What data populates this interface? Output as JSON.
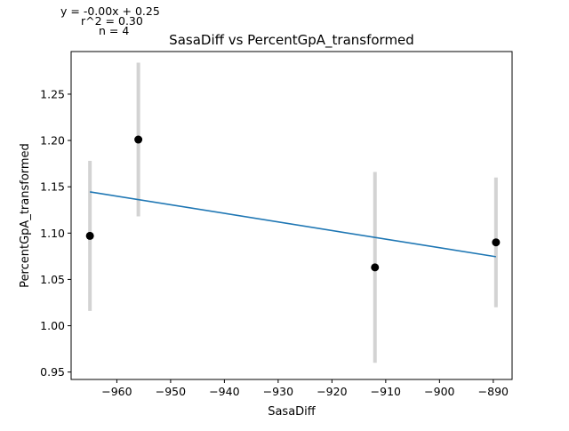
{
  "chart_data": {
    "type": "scatter",
    "title": "SasaDiff vs PercentGpA_transformed",
    "xlabel": "SasaDiff",
    "ylabel": "PercentGpA_transformed",
    "xlim": [
      -968.5,
      -886.5
    ],
    "ylim": [
      0.942,
      1.296
    ],
    "x_ticks": [
      -960,
      -950,
      -940,
      -930,
      -920,
      -910,
      -900,
      -890
    ],
    "x_tick_labels": [
      "−960",
      "−950",
      "−940",
      "−930",
      "−920",
      "−910",
      "−900",
      "−890"
    ],
    "y_ticks": [
      0.95,
      1.0,
      1.05,
      1.1,
      1.15,
      1.2,
      1.25
    ],
    "y_tick_labels": [
      "0.95",
      "1.00",
      "1.05",
      "1.10",
      "1.15",
      "1.20",
      "1.25"
    ],
    "grid": false,
    "points": [
      {
        "x": -965.0,
        "y": 1.097,
        "err_low": 1.016,
        "err_high": 1.178
      },
      {
        "x": -956.0,
        "y": 1.201,
        "err_low": 1.118,
        "err_high": 1.284
      },
      {
        "x": -912.0,
        "y": 1.063,
        "err_low": 0.96,
        "err_high": 1.166
      },
      {
        "x": -889.5,
        "y": 1.09,
        "err_low": 1.02,
        "err_high": 1.16
      }
    ],
    "fit_line": {
      "x": [
        -965.0,
        -889.5
      ],
      "y": [
        1.1445,
        1.0745
      ]
    },
    "annotations": [
      "y = -0.00x + 0.25",
      "r^2 = 0.30",
      "n = 4"
    ],
    "colors": {
      "points": "#000000",
      "error_bars": "#d3d3d3",
      "fit_line": "#1f77b4",
      "axes": "#000000"
    }
  }
}
